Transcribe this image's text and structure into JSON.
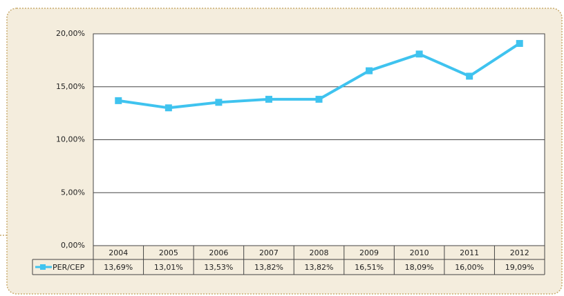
{
  "chart_data": {
    "type": "line",
    "categories": [
      "2004",
      "2005",
      "2006",
      "2007",
      "2008",
      "2009",
      "2010",
      "2011",
      "2012"
    ],
    "series": [
      {
        "name": "PER/CEP",
        "color": "#3fc3ef",
        "values": [
          13.69,
          13.01,
          13.53,
          13.82,
          13.82,
          16.51,
          18.09,
          16.0,
          19.09
        ],
        "value_labels": [
          "13,69%",
          "13,01%",
          "13,53%",
          "13,82%",
          "13,82%",
          "16,51%",
          "18,09%",
          "16,00%",
          "19,09%"
        ]
      }
    ],
    "ylim": [
      0,
      20
    ],
    "yticks": [
      {
        "value": 0,
        "label": "0,00%"
      },
      {
        "value": 5,
        "label": "5,00%"
      },
      {
        "value": 10,
        "label": "10,00%"
      },
      {
        "value": 15,
        "label": "15,00%"
      },
      {
        "value": 20,
        "label": "20,00%"
      }
    ],
    "grid": true
  }
}
